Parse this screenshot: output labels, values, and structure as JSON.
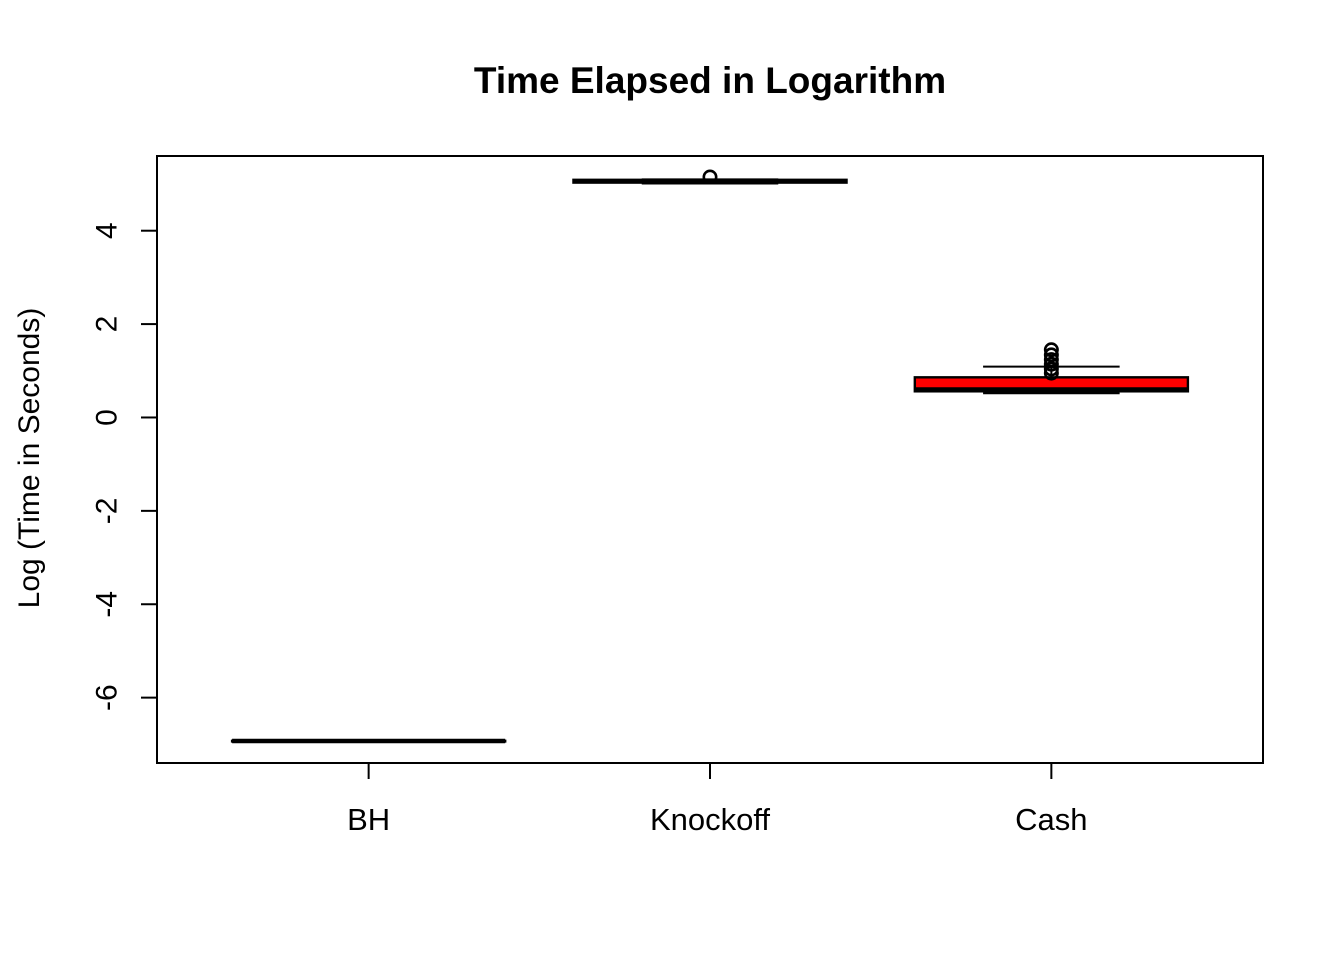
{
  "title": "Time Elapsed in Logarithm",
  "y_axis_title": "Log (Time in Seconds)",
  "colors": {
    "stroke": "#000000",
    "background": "#FFFFFF",
    "cash_box_fill": "#FF0000"
  },
  "chart_data": {
    "type": "boxplot",
    "title": "Time Elapsed in Logarithm",
    "xlabel": "",
    "ylabel": "Log (Time in Seconds)",
    "categories": [
      "BH",
      "Knockoff",
      "Cash"
    ],
    "yticks": [
      {
        "label": "4",
        "value": 4
      },
      {
        "label": "2",
        "value": 2
      },
      {
        "label": "0",
        "value": 0
      },
      {
        "label": "-2",
        "value": -2
      },
      {
        "label": "-4",
        "value": -4
      },
      {
        "label": "-6",
        "value": -6
      }
    ],
    "ylim": [
      -7.4,
      5.6
    ],
    "xlim": [
      0.38,
      3.62
    ],
    "grid": false,
    "legend": null,
    "box_width_frac": 0.8,
    "staple_width_frac": 0.5,
    "series": [
      {
        "name": "BH",
        "median": -6.93,
        "q1": -6.935,
        "q3": -6.925,
        "whisker_low": -6.945,
        "whisker_high": -6.915,
        "outliers": [],
        "fill": "#FFFFFF"
      },
      {
        "name": "Knockoff",
        "median": 5.06,
        "q1": 5.03,
        "q3": 5.09,
        "whisker_low": 5.01,
        "whisker_high": 5.1,
        "outliers": [
          5.15
        ],
        "fill": "#FFFFFF"
      },
      {
        "name": "Cash",
        "median": 0.6,
        "q1": 0.56,
        "q3": 0.86,
        "whisker_low": 0.52,
        "whisker_high": 1.09,
        "outliers": [
          0.95,
          1.04,
          1.14,
          1.24,
          1.34,
          1.45
        ],
        "fill": "#FF0000"
      }
    ]
  }
}
